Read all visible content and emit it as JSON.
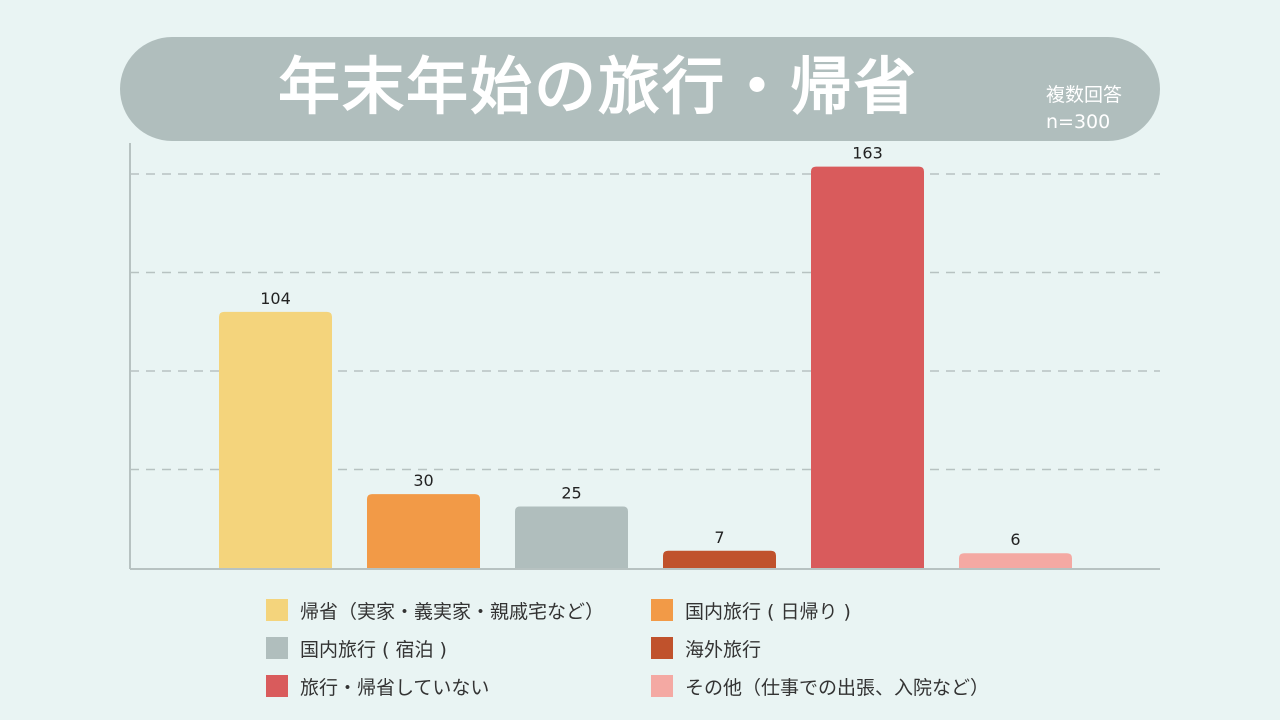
{
  "header": {
    "title": "年末年始の旅行・帰省",
    "sub_line1": "複数回答",
    "sub_line2": "n=300"
  },
  "chart_data": {
    "type": "bar",
    "title": "年末年始の旅行・帰省",
    "subtitle": "複数回答 n=300",
    "categories": [
      "帰省（実家・義実家・親戚宅など）",
      "国内旅行 ( 日帰り )",
      "国内旅行 ( 宿泊 )",
      "海外旅行",
      "旅行・帰省していない",
      "その他（仕事での出張、入院など）"
    ],
    "values": [
      104,
      30,
      25,
      7,
      163,
      6
    ],
    "colors": [
      "#f4d47c",
      "#f29a47",
      "#b0bebd",
      "#c0522c",
      "#d95b5c",
      "#f4a9a3"
    ],
    "ylim": [
      0,
      200
    ],
    "grid": true,
    "xlabel": "",
    "ylabel": "",
    "legend_position": "bottom"
  }
}
